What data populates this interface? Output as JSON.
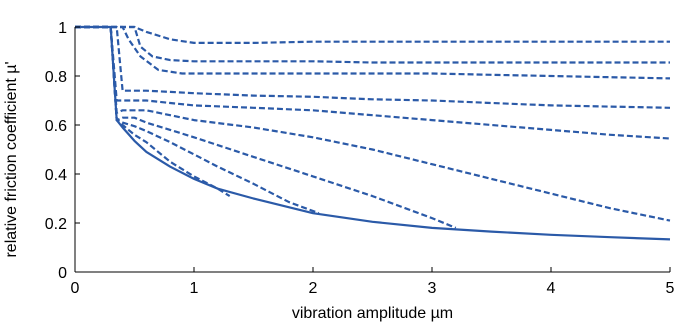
{
  "chart_data": {
    "type": "line",
    "title": "",
    "xlabel": "vibration amplitude µm",
    "ylabel": "relative friction coefficient µ'",
    "xlim": [
      0,
      5
    ],
    "ylim": [
      0,
      1
    ],
    "xticks": [
      0,
      1,
      2,
      3,
      4,
      5
    ],
    "yticks": [
      0,
      0.2,
      0.4,
      0.6,
      0.8,
      1
    ],
    "xtick_labels": [
      "0",
      "1",
      "2",
      "3",
      "4",
      "5"
    ],
    "ytick_labels": [
      "0",
      "0.2",
      "0.4",
      "0.6",
      "0.8",
      "1"
    ],
    "grid": false,
    "legend": "none",
    "colors": {
      "series": "#2b5aa8",
      "axis": "#000000"
    },
    "series": [
      {
        "style": "solid",
        "x": [
          0,
          0.3,
          0.35,
          0.4,
          0.5,
          0.6,
          0.8,
          1.0,
          1.2,
          1.5,
          2.0,
          2.5,
          3.0,
          3.5,
          4.0,
          4.5,
          5.0
        ],
        "y": [
          1.0,
          1.0,
          0.62,
          0.59,
          0.535,
          0.49,
          0.43,
          0.38,
          0.34,
          0.3,
          0.24,
          0.205,
          0.18,
          0.165,
          0.152,
          0.142,
          0.133
        ]
      },
      {
        "style": "dashed",
        "x": [
          0,
          0.3,
          0.35,
          0.4,
          0.5,
          0.6,
          0.8,
          1.0,
          1.2,
          1.3
        ],
        "y": [
          1.0,
          1.0,
          0.62,
          0.6,
          0.56,
          0.53,
          0.45,
          0.39,
          0.34,
          0.31
        ]
      },
      {
        "style": "dashed",
        "x": [
          0,
          0.3,
          0.35,
          0.4,
          0.5,
          0.6,
          0.8,
          1.0,
          1.2,
          1.5,
          1.8,
          2.05
        ],
        "y": [
          1.0,
          1.0,
          0.62,
          0.61,
          0.595,
          0.575,
          0.53,
          0.48,
          0.43,
          0.36,
          0.285,
          0.24
        ]
      },
      {
        "style": "dashed",
        "x": [
          0,
          0.3,
          0.35,
          0.4,
          0.5,
          0.6,
          0.8,
          1.0,
          1.5,
          2.0,
          2.5,
          3.0,
          3.2
        ],
        "y": [
          1.0,
          1.0,
          0.62,
          0.63,
          0.63,
          0.61,
          0.58,
          0.55,
          0.47,
          0.39,
          0.31,
          0.22,
          0.18
        ]
      },
      {
        "style": "dashed",
        "x": [
          0,
          0.3,
          0.35,
          0.4,
          0.6,
          0.8,
          1.0,
          1.5,
          2.0,
          2.5,
          3.0,
          3.5,
          4.0,
          4.5,
          5.0
        ],
        "y": [
          1.0,
          1.0,
          0.65,
          0.66,
          0.66,
          0.64,
          0.62,
          0.59,
          0.55,
          0.5,
          0.44,
          0.38,
          0.32,
          0.26,
          0.21
        ]
      },
      {
        "style": "dashed",
        "x": [
          0,
          0.3,
          0.35,
          0.4,
          0.6,
          0.8,
          1.0,
          1.5,
          2.0,
          2.5,
          3.0,
          3.5,
          4.0,
          4.5,
          5.0
        ],
        "y": [
          1.0,
          1.0,
          0.7,
          0.7,
          0.7,
          0.69,
          0.68,
          0.67,
          0.66,
          0.64,
          0.62,
          0.6,
          0.58,
          0.56,
          0.545
        ]
      },
      {
        "style": "dashed",
        "x": [
          0,
          0.35,
          0.4,
          0.6,
          0.8,
          1.0,
          1.5,
          2.0,
          2.5,
          3.0,
          3.5,
          4.0,
          4.5,
          5.0
        ],
        "y": [
          1.0,
          1.0,
          0.74,
          0.74,
          0.735,
          0.73,
          0.72,
          0.715,
          0.705,
          0.7,
          0.69,
          0.68,
          0.675,
          0.67
        ]
      },
      {
        "style": "dashed",
        "x": [
          0,
          0.4,
          0.45,
          0.55,
          0.7,
          0.9,
          1.0,
          1.5,
          2.0,
          2.5,
          3.0,
          3.5,
          4.0,
          4.5,
          5.0
        ],
        "y": [
          1.0,
          1.0,
          0.95,
          0.88,
          0.825,
          0.81,
          0.81,
          0.81,
          0.81,
          0.81,
          0.81,
          0.805,
          0.8,
          0.795,
          0.79
        ]
      },
      {
        "style": "dashed",
        "x": [
          0,
          0.5,
          0.55,
          0.65,
          0.8,
          1.0,
          1.5,
          2.0,
          2.5,
          3.0,
          3.5,
          4.0,
          4.5,
          5.0
        ],
        "y": [
          1.0,
          1.0,
          0.92,
          0.88,
          0.865,
          0.86,
          0.86,
          0.86,
          0.855,
          0.855,
          0.855,
          0.855,
          0.855,
          0.855
        ]
      },
      {
        "style": "dashed",
        "x": [
          0,
          0.5,
          0.6,
          0.8,
          1.0,
          1.5,
          2.0,
          2.5,
          3.0,
          3.5,
          4.0,
          4.5,
          5.0
        ],
        "y": [
          1.0,
          1.0,
          0.98,
          0.95,
          0.935,
          0.935,
          0.94,
          0.94,
          0.94,
          0.94,
          0.94,
          0.94,
          0.94
        ]
      }
    ]
  }
}
